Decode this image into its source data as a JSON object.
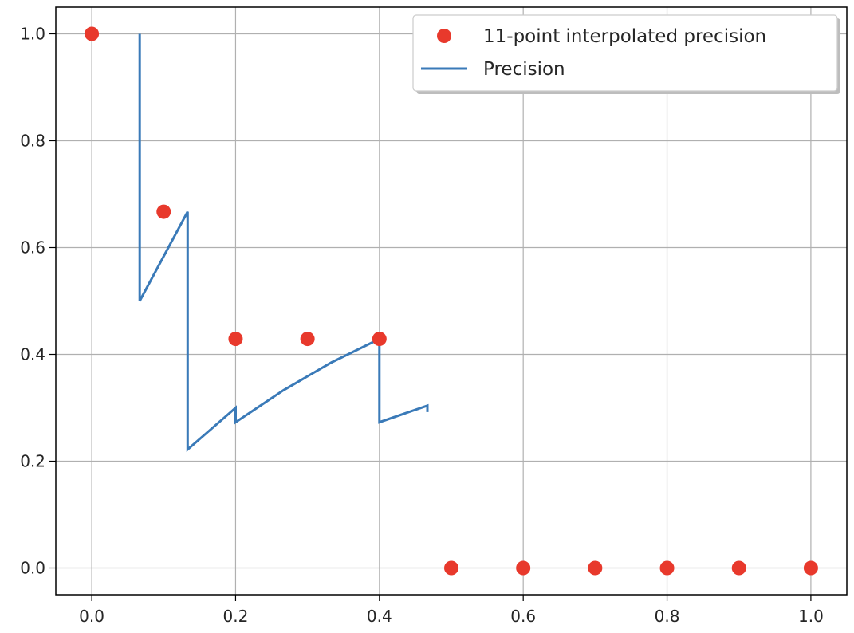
{
  "chart_data": {
    "type": "line",
    "title": "",
    "xlabel": "",
    "ylabel": "",
    "xlim": [
      -0.05,
      1.05
    ],
    "ylim": [
      -0.05,
      1.05
    ],
    "x_ticks": [
      "0.0",
      "0.2",
      "0.4",
      "0.6",
      "0.8",
      "1.0"
    ],
    "y_ticks": [
      "0.0",
      "0.2",
      "0.4",
      "0.6",
      "0.8",
      "1.0"
    ],
    "grid": true,
    "legend_position": "top-right",
    "series": [
      {
        "name": "11-point interpolated precision",
        "kind": "scatter",
        "color": "#e8392c",
        "x": [
          0.0,
          0.1,
          0.2,
          0.3,
          0.4,
          0.5,
          0.6,
          0.7,
          0.8,
          0.9,
          1.0
        ],
        "y": [
          1.0,
          0.667,
          0.429,
          0.429,
          0.429,
          0.0,
          0.0,
          0.0,
          0.0,
          0.0,
          0.0
        ]
      },
      {
        "name": "Precision",
        "kind": "line",
        "color": "#3a7ab8",
        "x": [
          0.0667,
          0.0667,
          0.1333,
          0.1333,
          0.2,
          0.2,
          0.2667,
          0.3333,
          0.4,
          0.4,
          0.4667,
          0.4667
        ],
        "y": [
          1.0,
          0.5,
          0.667,
          0.222,
          0.3,
          0.273,
          0.333,
          0.385,
          0.429,
          0.273,
          0.304,
          0.292
        ]
      }
    ]
  }
}
